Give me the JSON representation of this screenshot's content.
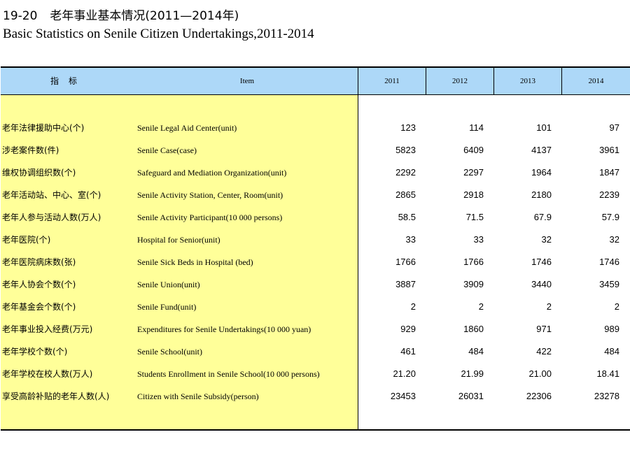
{
  "title": {
    "number": "19-20",
    "cn": "老年事业基本情况(2011—2014年)",
    "en": "Basic Statistics on Senile Citizen Undertakings,2011-2014"
  },
  "header": {
    "indicator": "指标",
    "item": "Item",
    "years": [
      "2011",
      "2012",
      "2013",
      "2014"
    ]
  },
  "rows": [
    {
      "cn": "老年法律援助中心(个)",
      "en": "Senile Legal Aid Center(unit)",
      "values": [
        "123",
        "114",
        "101",
        "97"
      ]
    },
    {
      "cn": "涉老案件数(件)",
      "en": "Senile Case(case)",
      "values": [
        "5823",
        "6409",
        "4137",
        "3961"
      ]
    },
    {
      "cn": "维权协调组织数(个)",
      "en": "Safeguard and Mediation Organization(unit)",
      "values": [
        "2292",
        "2297",
        "1964",
        "1847"
      ]
    },
    {
      "cn": "老年活动站、中心、室(个)",
      "en": "Senile Activity Station, Center, Room(unit)",
      "values": [
        "2865",
        "2918",
        "2180",
        "2239"
      ]
    },
    {
      "cn": "老年人参与活动人数(万人)",
      "en": "Senile Activity Participant(10 000 persons)",
      "values": [
        "58.5",
        "71.5",
        "67.9",
        "57.9"
      ]
    },
    {
      "cn": "老年医院(个)",
      "en": "Hospital for Senior(unit)",
      "values": [
        "33",
        "33",
        "32",
        "32"
      ]
    },
    {
      "cn": "老年医院病床数(张)",
      "en": "Senile Sick Beds in Hospital (bed)",
      "values": [
        "1766",
        "1766",
        "1746",
        "1746"
      ]
    },
    {
      "cn": "老年人协会个数(个)",
      "en": "Senile Union(unit)",
      "values": [
        "3887",
        "3909",
        "3440",
        "3459"
      ]
    },
    {
      "cn": "老年基金会个数(个)",
      "en": "Senile Fund(unit)",
      "values": [
        "2",
        "2",
        "2",
        "2"
      ]
    },
    {
      "cn": "老年事业投入经费(万元)",
      "en": "Expenditures for Senile Undertakings(10 000 yuan)",
      "values": [
        "929",
        "1860",
        "971",
        "989"
      ]
    },
    {
      "cn": "老年学校个数(个)",
      "en": "Senile School(unit)",
      "values": [
        "461",
        "484",
        "422",
        "484"
      ]
    },
    {
      "cn": "老年学校在校人数(万人)",
      "en": "Students Enrollment in Senile School(10 000 persons)",
      "values": [
        "21.20",
        "21.99",
        "21.00",
        "18.41"
      ]
    },
    {
      "cn": "享受高龄补贴的老年人数(人)",
      "en": "Citizen with Senile Subsidy(person)",
      "values": [
        "23453",
        "26031",
        "22306",
        "23278"
      ]
    }
  ],
  "colors": {
    "header_bg": "#add8f8",
    "label_bg": "#ffff99"
  }
}
